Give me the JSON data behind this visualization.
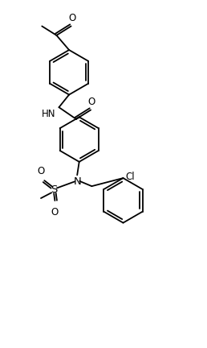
{
  "background_color": "#ffffff",
  "line_color": "#000000",
  "line_width": 1.3,
  "font_size": 8.5,
  "figsize": [
    2.58,
    4.32
  ],
  "dpi": 100,
  "xlim": [
    0,
    10
  ],
  "ylim": [
    0,
    16
  ]
}
